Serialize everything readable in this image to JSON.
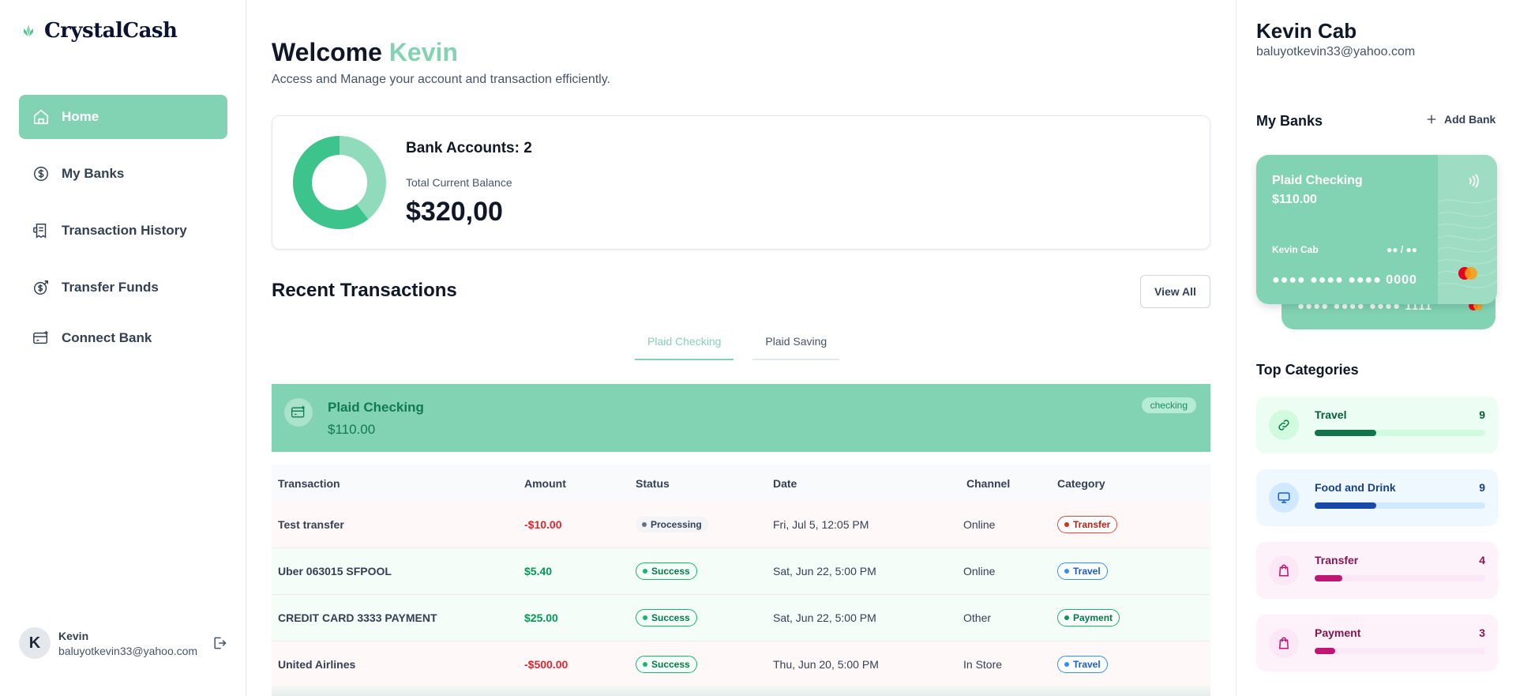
{
  "app": {
    "name": "CrystalCash"
  },
  "sidebar": {
    "items": [
      {
        "label": "Home",
        "icon": "home-icon",
        "active": true
      },
      {
        "label": "My Banks",
        "icon": "dollar-circle-icon",
        "active": false
      },
      {
        "label": "Transaction History",
        "icon": "receipt-icon",
        "active": false
      },
      {
        "label": "Transfer Funds",
        "icon": "money-send-icon",
        "active": false
      },
      {
        "label": "Connect Bank",
        "icon": "card-add-icon",
        "active": false
      }
    ],
    "user": {
      "initial": "K",
      "name": "Kevin",
      "email": "baluyotkevin33@yahoo.com"
    }
  },
  "header": {
    "welcome": "Welcome",
    "name": "Kevin",
    "subtitle": "Access and Manage your account and transaction efficiently."
  },
  "balance": {
    "accounts_label": "Bank Accounts: 2",
    "total_label": "Total Current Balance",
    "total": "$320,00"
  },
  "recent": {
    "title": "Recent Transactions",
    "view_all": "View All",
    "tabs": [
      {
        "label": "Plaid Checking",
        "active": true
      },
      {
        "label": "Plaid Saving",
        "active": false
      }
    ],
    "account": {
      "name": "Plaid Checking",
      "balance": "$110.00",
      "badge": "checking"
    },
    "columns": [
      "Transaction",
      "Amount",
      "Status",
      "Date",
      "Channel",
      "Category"
    ],
    "rows": [
      {
        "name": "Test transfer",
        "amount": "-$10.00",
        "sign": "neg",
        "status": "Processing",
        "date": "Fri, Jul 5, 12:05 PM",
        "channel": "Online",
        "category": "Transfer"
      },
      {
        "name": "Uber 063015 SFPOOL",
        "amount": "$5.40",
        "sign": "pos",
        "status": "Success",
        "date": "Sat, Jun 22, 5:00 PM",
        "channel": "Online",
        "category": "Travel"
      },
      {
        "name": "CREDIT CARD 3333 PAYMENT",
        "amount": "$25.00",
        "sign": "pos",
        "status": "Success",
        "date": "Sat, Jun 22, 5:00 PM",
        "channel": "Other",
        "category": "Payment"
      },
      {
        "name": "United Airlines",
        "amount": "-$500.00",
        "sign": "neg",
        "status": "Success",
        "date": "Thu, Jun 20, 5:00 PM",
        "channel": "In Store",
        "category": "Travel"
      }
    ]
  },
  "right_panel": {
    "name": "Kevin Cab",
    "email": "baluyotkevin33@yahoo.com",
    "my_banks_title": "My Banks",
    "add_bank": "Add Bank",
    "card_front": {
      "title": "Plaid Checking",
      "balance": "$110.00",
      "holder": "Kevin Cab",
      "expiry": "●● / ●●",
      "number": "●●●● ●●●● ●●●● 0000"
    },
    "card_back": {
      "number": "●●●● ●●●● ●●●● 1111"
    },
    "top_categories_title": "Top Categories",
    "categories": [
      {
        "name": "Travel",
        "count": "9",
        "progress": 0.36,
        "icon": "link-icon"
      },
      {
        "name": "Food and Drink",
        "count": "9",
        "progress": 0.36,
        "icon": "monitor-icon"
      },
      {
        "name": "Transfer",
        "count": "4",
        "progress": 0.16,
        "icon": "shopping-bag-icon"
      },
      {
        "name": "Payment",
        "count": "3",
        "progress": 0.12,
        "icon": "shopping-bag-icon"
      }
    ]
  },
  "colors": {
    "accent": "#82d3b4",
    "negative": "#e0272f",
    "positive": "#039855"
  }
}
